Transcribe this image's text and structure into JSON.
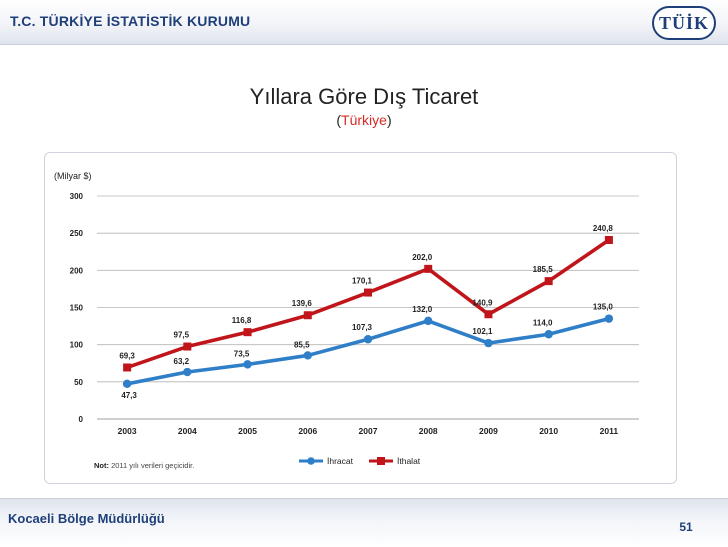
{
  "header": {
    "org_name": "T.C. TÜRKİYE İSTATİSTİK KURUMU",
    "logo_text": "TÜİK"
  },
  "slide": {
    "title": "Yıllara Göre Dış Ticaret",
    "subtitle_open": "(",
    "subtitle_accent": "Türkiye",
    "subtitle_close": ")"
  },
  "chart_data": {
    "type": "line",
    "title": "",
    "ylabel": "(Milyar $)",
    "xlabel": "",
    "categories": [
      "2003",
      "2004",
      "2005",
      "2006",
      "2007",
      "2008",
      "2009",
      "2010",
      "2011"
    ],
    "ylim": [
      0,
      300
    ],
    "yticks": [
      0,
      50,
      100,
      150,
      200,
      250,
      300
    ],
    "series": [
      {
        "name": "İhracat",
        "color": "#2f7ec8",
        "values": [
          47.3,
          63.2,
          73.5,
          85.5,
          107.3,
          132.0,
          102.1,
          114.0,
          135.0
        ],
        "labels": [
          "47,3",
          "63,2",
          "73,5",
          "85,5",
          "107,3",
          "132,0",
          "102,1",
          "114,0",
          "135,0"
        ]
      },
      {
        "name": "İthalat",
        "color": "#c0151b",
        "values": [
          69.3,
          97.5,
          116.8,
          139.6,
          170.1,
          202.0,
          140.9,
          185.5,
          240.8
        ],
        "labels": [
          "69,3",
          "97,5",
          "116,8",
          "139,6",
          "170,1",
          "202,0",
          "140,9",
          "185,5",
          "240,8"
        ]
      }
    ],
    "grid": true,
    "legend": "bottom",
    "note_label": "Not:",
    "note_text": " 2011 yılı verileri geçicidir."
  },
  "footer": {
    "office": "Kocaeli Bölge Müdürlüğü",
    "page_number": "51"
  }
}
